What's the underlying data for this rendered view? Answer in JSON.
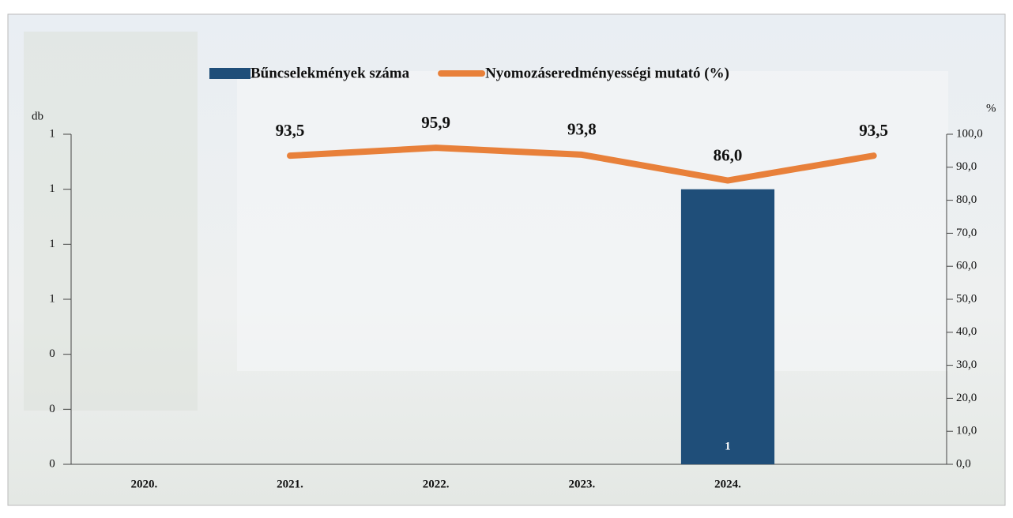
{
  "chart_data": {
    "type": "bar-line",
    "y_label": "db",
    "y2_label": "%",
    "categories": [
      "2020.",
      "2021.",
      "2022.",
      "2023.",
      "2024.",
      null
    ],
    "series": [
      {
        "name": "Bűncselekmények száma",
        "type": "bar",
        "color": "#1f4e79",
        "values": [
          0,
          0,
          0,
          0,
          1,
          null
        ],
        "value_labels": [
          null,
          null,
          null,
          null,
          "1",
          null
        ]
      },
      {
        "name": "Nyomozáseredményességi mutató (%)",
        "type": "line",
        "axis": "y2",
        "color": "#e8803a",
        "values": [
          null,
          93.5,
          95.9,
          93.8,
          86.0,
          93.5
        ],
        "value_labels": [
          null,
          "93,5",
          "95,9",
          "93,8",
          "86,0",
          "93,5"
        ]
      }
    ],
    "ylim": [
      0,
      1.2
    ],
    "yticks": [
      {
        "value": 0,
        "label": "0"
      },
      {
        "value": 0.2,
        "label": "0"
      },
      {
        "value": 0.4,
        "label": "0"
      },
      {
        "value": 0.6,
        "label": "1"
      },
      {
        "value": 0.8,
        "label": "1"
      },
      {
        "value": 1.0,
        "label": "1"
      },
      {
        "value": 1.2,
        "label": "1"
      }
    ],
    "y2lim": [
      0,
      100
    ],
    "y2ticks": [
      {
        "value": 0,
        "label": "0,0"
      },
      {
        "value": 10,
        "label": "10,0"
      },
      {
        "value": 20,
        "label": "20,0"
      },
      {
        "value": 30,
        "label": "30,0"
      },
      {
        "value": 40,
        "label": "40,0"
      },
      {
        "value": 50,
        "label": "50,0"
      },
      {
        "value": 60,
        "label": "60,0"
      },
      {
        "value": 70,
        "label": "70,0"
      },
      {
        "value": 80,
        "label": "80,0"
      },
      {
        "value": 90,
        "label": "90,0"
      },
      {
        "value": 100,
        "label": "100,0"
      }
    ],
    "grid": false
  }
}
